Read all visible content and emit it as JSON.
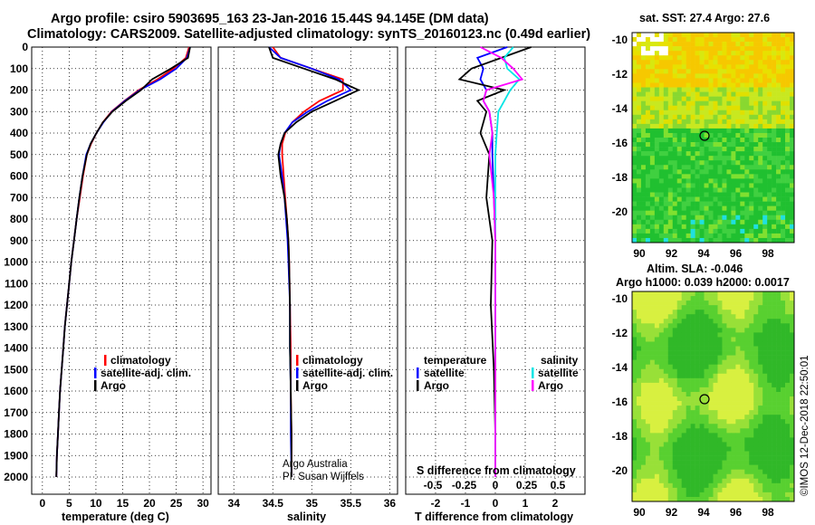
{
  "header": {
    "line1": "Argo profile: csiro 5903695_163 23-Jan-2016 15.44S 94.145E (DM data)",
    "line2": "Climatology: CARS2009. Satellite-adjusted climatology: synTS_20160123.nc (0.49d earlier)"
  },
  "colors": {
    "climatology": "#ff0000",
    "satellite": "#0000ff",
    "argo": "#000000",
    "sat_salinity": "#00e5e5",
    "argo_salinity_diff": "#ff00ff"
  },
  "panels": {
    "temperature": {
      "xlabel": "temperature (deg C)"
    },
    "salinity": {
      "xlabel": "salinity",
      "credit1": "Argo Australia",
      "credit2": "PI: Susan Wijffels"
    },
    "diff": {
      "xlabel": "T difference from climatology",
      "top_label": "S difference from climatology"
    }
  },
  "legends": {
    "temperature": [
      "climatology",
      "satellite-adj. clim.",
      "Argo"
    ],
    "salinity": [
      "climatology",
      "satellite-adj. clim.",
      "Argo"
    ],
    "diff_t_head": "temperature",
    "diff_s_head": "salinity",
    "diff_t": [
      "satellite",
      "Argo"
    ],
    "diff_s": [
      "satellite",
      "Argo"
    ]
  },
  "maps": {
    "sst_title": "sat. SST: 27.4 Argo: 27.6",
    "sla_title1": "Altim. SLA: -0.046",
    "sla_title2": "Argo h1000: 0.039 h2000: 0.0017",
    "stamp": "©IMOS 12-Dec-2018 22:50:01",
    "lon_ticks": [
      "90",
      "92",
      "94",
      "96",
      "98"
    ],
    "lat_ticks": [
      "-10",
      "-12",
      "-14",
      "-16",
      "-18",
      "-20"
    ]
  },
  "chart_data": [
    {
      "type": "line",
      "panel": "temperature",
      "xlabel": "temperature (deg C)",
      "ylabel": "",
      "xlim": [
        -2,
        31.5
      ],
      "ylim": [
        2080,
        0
      ],
      "xticks": [
        0,
        5,
        10,
        15,
        20,
        25,
        30
      ],
      "yticks": [
        0,
        100,
        200,
        300,
        400,
        500,
        600,
        700,
        800,
        900,
        1000,
        1100,
        1200,
        1300,
        1400,
        1500,
        1600,
        1700,
        1800,
        1900,
        2000
      ],
      "series": [
        {
          "name": "climatology",
          "x": [
            27.4,
            26.8,
            24.5,
            21.5,
            18,
            15.3,
            12.9,
            11.3,
            10.1,
            9.1,
            8.3,
            7.6,
            7.0,
            6.4,
            5.9,
            5.4,
            5.0,
            4.6,
            4.2,
            3.9,
            3.6,
            3.3,
            3.1,
            2.9,
            2.7,
            2.6
          ],
          "y": [
            0,
            50,
            100,
            150,
            200,
            250,
            300,
            350,
            400,
            450,
            500,
            600,
            700,
            800,
            900,
            1000,
            1100,
            1200,
            1300,
            1400,
            1500,
            1600,
            1700,
            1800,
            1900,
            2000
          ]
        },
        {
          "name": "satellite-adj. clim.",
          "x": [
            27.6,
            27.0,
            25.0,
            22.0,
            18.2,
            15.4,
            13.0,
            11.4,
            10.1,
            9.0,
            8.2,
            7.5,
            6.9,
            6.4,
            5.9,
            5.4,
            5.0,
            4.6,
            4.2,
            3.9,
            3.6,
            3.3,
            3.1,
            2.9,
            2.7,
            2.6
          ],
          "y": [
            0,
            50,
            100,
            150,
            200,
            250,
            300,
            350,
            400,
            450,
            500,
            600,
            700,
            800,
            900,
            1000,
            1100,
            1200,
            1300,
            1400,
            1500,
            1600,
            1700,
            1800,
            1900,
            2000
          ]
        },
        {
          "name": "Argo",
          "x": [
            27.6,
            27.2,
            24.0,
            20.5,
            18.4,
            15.6,
            13.1,
            11.3,
            10.1,
            9.0,
            8.3,
            7.5,
            6.9,
            6.4,
            5.9,
            5.4,
            5.0,
            4.6,
            4.2,
            3.9,
            3.6,
            3.3,
            3.1,
            2.9,
            2.7,
            2.6
          ],
          "y": [
            0,
            50,
            100,
            150,
            200,
            250,
            300,
            350,
            400,
            450,
            500,
            600,
            700,
            800,
            900,
            1000,
            1100,
            1200,
            1300,
            1400,
            1500,
            1600,
            1700,
            1800,
            1900,
            2000
          ]
        }
      ]
    },
    {
      "type": "line",
      "panel": "salinity",
      "xlabel": "salinity",
      "xlim": [
        33.8,
        36.1
      ],
      "ylim": [
        2080,
        0
      ],
      "xticks": [
        34,
        34.5,
        35,
        35.5,
        36
      ],
      "series": [
        {
          "name": "climatology",
          "x": [
            34.5,
            34.6,
            35.0,
            35.4,
            35.4,
            35.1,
            34.9,
            34.75,
            34.66,
            34.62,
            34.62,
            34.64,
            34.66,
            34.68,
            34.7,
            34.71,
            34.72,
            34.73,
            34.73,
            34.74,
            34.74
          ],
          "y": [
            0,
            50,
            100,
            150,
            200,
            250,
            300,
            350,
            400,
            450,
            500,
            600,
            700,
            800,
            900,
            1000,
            1200,
            1400,
            1600,
            1800,
            2000
          ]
        },
        {
          "name": "satellite-adj. clim.",
          "x": [
            34.45,
            34.6,
            35.0,
            35.35,
            35.5,
            35.2,
            34.95,
            34.75,
            34.65,
            34.6,
            34.58,
            34.62,
            34.65,
            34.67,
            34.69,
            34.7,
            34.72,
            34.72,
            34.73,
            34.73,
            34.74
          ],
          "y": [
            0,
            50,
            100,
            150,
            200,
            250,
            300,
            350,
            400,
            450,
            500,
            600,
            700,
            800,
            900,
            1000,
            1200,
            1400,
            1600,
            1800,
            2000
          ]
        },
        {
          "name": "Argo",
          "x": [
            34.45,
            34.5,
            34.9,
            35.3,
            35.6,
            35.3,
            35.0,
            34.8,
            34.65,
            34.6,
            34.57,
            34.6,
            34.65,
            34.68,
            34.7,
            34.71,
            34.72,
            34.72,
            34.73,
            34.74,
            34.74
          ],
          "y": [
            0,
            50,
            100,
            150,
            200,
            250,
            300,
            350,
            400,
            450,
            500,
            600,
            700,
            800,
            900,
            1000,
            1200,
            1400,
            1600,
            1800,
            2000
          ]
        }
      ]
    },
    {
      "type": "line",
      "panel": "difference",
      "xlabel": "T difference from climatology",
      "title": "S difference from climatology",
      "xlim": [
        -3,
        3
      ],
      "ylim": [
        2080,
        0
      ],
      "xticks": [
        -2,
        -1,
        0,
        1,
        2
      ],
      "xticks_top": [
        "-0.5",
        "-0.25",
        "0",
        "0.25",
        "0.5"
      ],
      "series": [
        {
          "name": "temperature satellite",
          "x": [
            0.4,
            -0.6,
            -0.4,
            -0.5,
            -0.3,
            -0.4,
            -0.2,
            -0.1,
            -0.1,
            -0.05,
            0,
            0,
            0,
            0,
            0
          ],
          "y": [
            0,
            50,
            100,
            150,
            200,
            250,
            300,
            400,
            500,
            700,
            900,
            1200,
            1500,
            1800,
            2000
          ]
        },
        {
          "name": "temperature Argo",
          "x": [
            1.2,
            0.2,
            -0.8,
            -1.2,
            0.3,
            -0.6,
            -0.3,
            -0.5,
            -0.2,
            -0.3,
            -0.1,
            -0.15,
            -0.05,
            0,
            0
          ],
          "y": [
            0,
            50,
            100,
            150,
            200,
            250,
            300,
            400,
            500,
            700,
            900,
            1200,
            1500,
            1800,
            2000
          ]
        },
        {
          "name": "salinity satellite",
          "x": [
            0.6,
            0.3,
            0.4,
            0.8,
            0.5,
            0.3,
            0.1,
            0.05,
            0,
            0,
            0,
            0,
            0,
            0,
            0
          ],
          "y": [
            0,
            50,
            100,
            150,
            200,
            250,
            300,
            400,
            500,
            700,
            900,
            1200,
            1500,
            1800,
            2000
          ]
        },
        {
          "name": "salinity Argo",
          "x": [
            -0.5,
            0.2,
            0.6,
            0.9,
            -0.3,
            -0.4,
            -0.2,
            -0.1,
            -0.2,
            -0.05,
            0,
            0,
            0,
            0,
            0
          ],
          "y": [
            0,
            50,
            100,
            150,
            200,
            250,
            300,
            400,
            500,
            700,
            900,
            1200,
            1500,
            1800,
            2000
          ]
        }
      ]
    }
  ]
}
